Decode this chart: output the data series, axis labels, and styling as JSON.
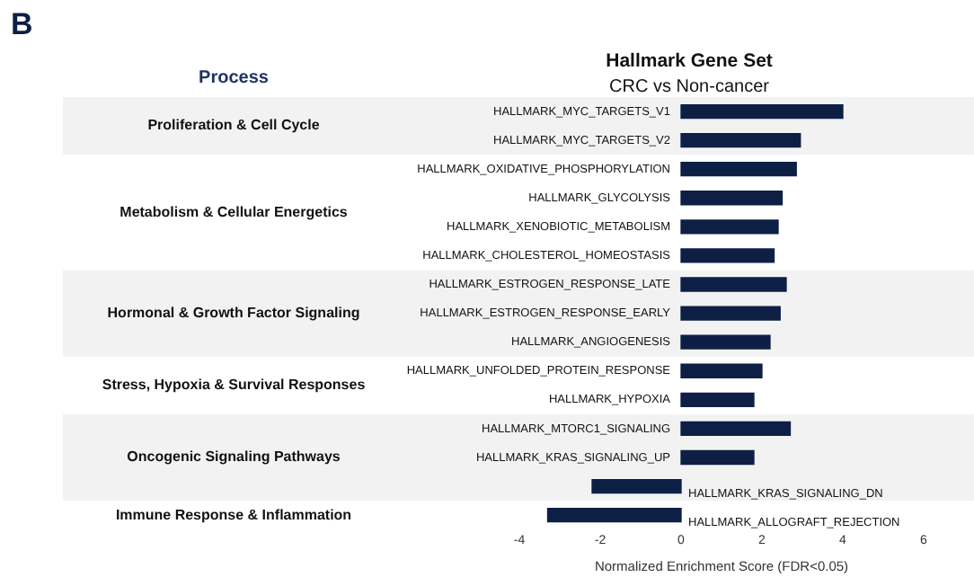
{
  "chart_data": {
    "type": "bar",
    "orientation": "horizontal",
    "title": "Hallmark Gene Set",
    "subtitle": "CRC vs Non-cancer",
    "xlabel": "Normalized Enrichment Score (FDR<0.05)",
    "annotations": [
      "B",
      "Process",
      "Metabolism & Cellular Energetics",
      "Stress, Hypoxia & Survival Responses",
      "Immune Response & Inflammation"
    ],
    "categories": [
      "HALLMARK_MYC_TARGETS_V1",
      "HALLMARK_MYC_TARGETS_V2",
      "HALLMARK_OXIDATIVE_PHOSPHORYLATION",
      "HALLMARK_GLYCOLYSIS",
      "HALLMARK_XENOBIOTIC_METABOLISM",
      "HALLMARK_CHOLESTEROL_HOMEOSTASIS",
      "HALLMARK_ESTROGEN_RESPONSE_LATE",
      "HALLMARK_ESTROGEN_RESPONSE_EARLY",
      "HALLMARK_ANGIOGENESIS",
      "HALLMARK_UNFOLDED_PROTEIN_RESPONSE",
      "HALLMARK_HYPOXIA",
      "HALLMARK_MTORC1_SIGNALING",
      "HALLMARK_KRAS_SIGNALING_UP",
      "HALLMARK_KRAS_SIGNALING_DN",
      "HALLMARK_ALLOGRAFT_REJECTION"
    ],
    "values": [
      4.0,
      2.95,
      2.85,
      2.5,
      2.4,
      2.3,
      2.6,
      2.45,
      2.2,
      2.0,
      1.8,
      2.7,
      1.8,
      -2.2,
      -3.3
    ],
    "color": "#0d1f45",
    "xlim": [
      -4,
      6
    ],
    "xticks": [
      -4,
      -2,
      0,
      2,
      4,
      6
    ],
    "grid": false,
    "legend": false,
    "bands": [
      {
        "axis": "y",
        "from": "HALLMARK_MYC_TARGETS_V1",
        "to": "HALLMARK_MYC_TARGETS_V2",
        "label": "Proliferation & Cell Cycle",
        "color": "#f2f2f2"
      },
      {
        "axis": "y",
        "from": "HALLMARK_ESTROGEN_RESPONSE_LATE",
        "to": "HALLMARK_ANGIOGENESIS",
        "label": "Hormonal & Growth Factor Signaling",
        "color": "#f2f2f2"
      },
      {
        "axis": "y",
        "from": "HALLMARK_MTORC1_SIGNALING",
        "to": "HALLMARK_KRAS_SIGNALING_DN",
        "label": "Oncogenic Signaling Pathways",
        "color": "#f2f2f2"
      }
    ]
  }
}
